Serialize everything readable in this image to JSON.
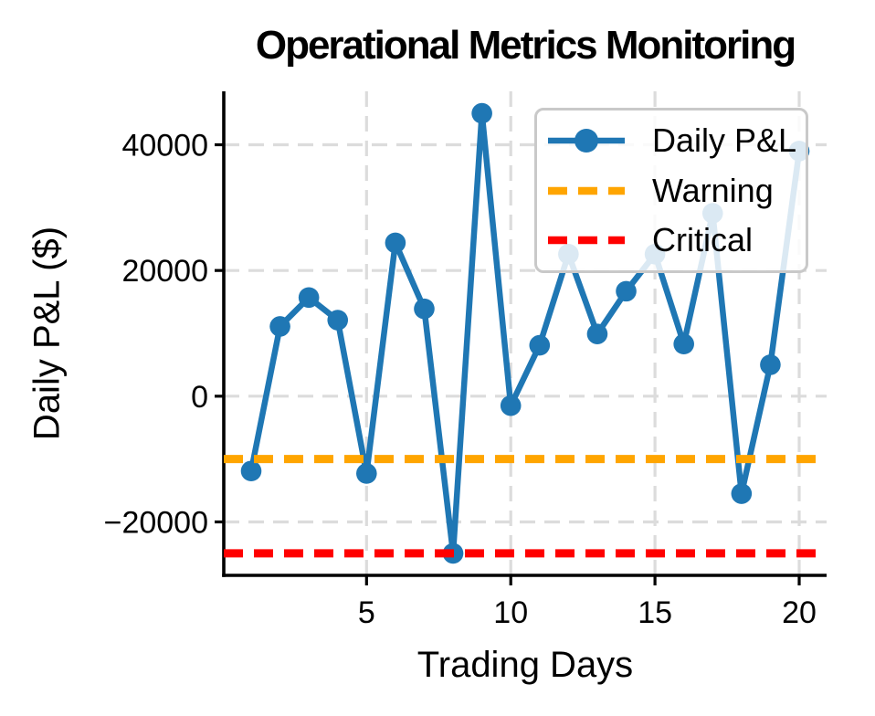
{
  "chart_data": {
    "type": "line",
    "title": "Operational Metrics Monitoring",
    "xlabel": "Trading Days",
    "ylabel": "Daily P&L ($)",
    "x": [
      1,
      2,
      3,
      4,
      5,
      6,
      7,
      8,
      9,
      10,
      11,
      12,
      13,
      14,
      15,
      16,
      17,
      18,
      19,
      20
    ],
    "series": [
      {
        "name": "Daily P&L",
        "kind": "line",
        "marker": "circle",
        "color": "#1f77b4",
        "values": [
          -11900,
          11100,
          15700,
          12100,
          -12300,
          24400,
          13900,
          -25000,
          45000,
          -1500,
          8100,
          22600,
          9900,
          16700,
          22600,
          8300,
          29100,
          -15500,
          5000,
          39000
        ]
      },
      {
        "name": "Warning",
        "kind": "threshold",
        "linestyle": "dashed",
        "color": "#ffa500",
        "value": -10000
      },
      {
        "name": "Critical",
        "kind": "threshold",
        "linestyle": "dashed",
        "color": "#ff0000",
        "value": -25000
      }
    ],
    "xticks": {
      "values": [
        5,
        10,
        15,
        20
      ],
      "labels": [
        "5",
        "10",
        "15",
        "20"
      ]
    },
    "yticks": {
      "values": [
        40000,
        20000,
        0,
        -20000
      ],
      "labels": [
        "40000",
        "20000",
        "0",
        "−20000"
      ]
    },
    "xlim": [
      0.05,
      20.95
    ],
    "ylim": [
      -28500,
      48500
    ],
    "grid": true,
    "grid_color": "#dcdcdc",
    "legend_position": "upper right",
    "text_color": "#000000",
    "background": "#ffffff"
  }
}
